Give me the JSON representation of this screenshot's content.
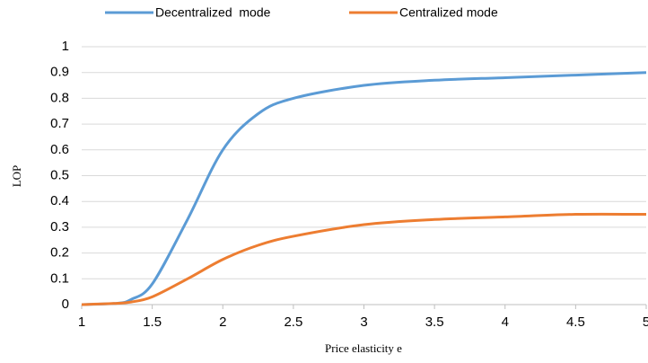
{
  "chart_data": {
    "type": "line",
    "x_label": "Price elasticity e",
    "y_label": "LOP",
    "x": [
      1,
      1.25,
      1.35,
      1.5,
      1.75,
      2,
      2.25,
      2.5,
      3,
      3.5,
      4,
      4.5,
      5
    ],
    "series": [
      {
        "name": "Decentralized  mode",
        "color": "#5b9bd5",
        "values": [
          0,
          0.005,
          0.02,
          0.08,
          0.33,
          0.6,
          0.74,
          0.8,
          0.85,
          0.87,
          0.88,
          0.89,
          0.9
        ]
      },
      {
        "name": "Centralized mode",
        "color": "#ed7d31",
        "values": [
          0,
          0.005,
          0.01,
          0.03,
          0.1,
          0.175,
          0.23,
          0.265,
          0.31,
          0.33,
          0.34,
          0.35,
          0.35
        ]
      }
    ],
    "xlim": [
      1,
      5
    ],
    "xticks": [
      1,
      1.5,
      2,
      2.5,
      3,
      3.5,
      4,
      4.5,
      5
    ],
    "ylim": [
      0,
      1
    ],
    "yticks": [
      0,
      0.1,
      0.2,
      0.3,
      0.4,
      0.5,
      0.6,
      0.7,
      0.8,
      0.9,
      1
    ],
    "grid": true,
    "legend": "top"
  }
}
